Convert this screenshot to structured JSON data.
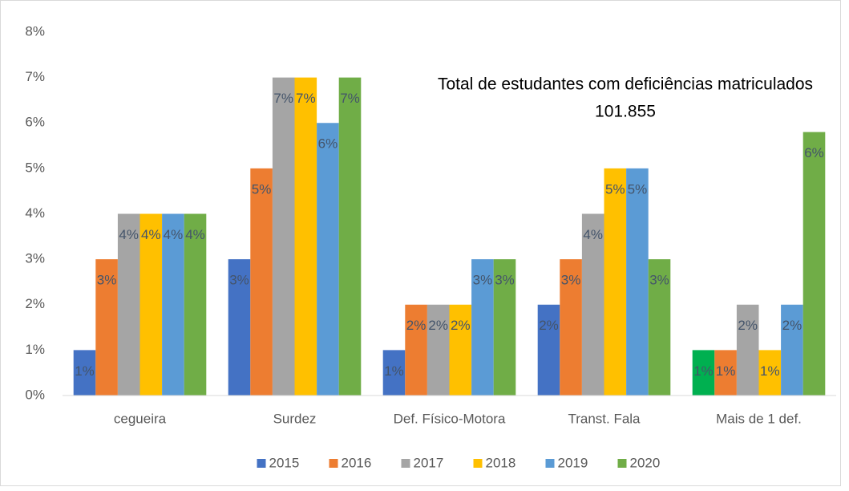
{
  "chart_data": {
    "type": "bar",
    "annotation": [
      "Total de estudantes com deficiências matriculados",
      "101.855"
    ],
    "categories": [
      "cegueira",
      "Surdez",
      "Def. Físico-Motora",
      "Transt. Fala",
      "Mais de 1 def."
    ],
    "series": [
      {
        "name": "2015",
        "color": "#4472c4",
        "colors": [
          "#4472c4",
          "#4472c4",
          "#4472c4",
          "#4472c4",
          "#00b050"
        ],
        "values": [
          1,
          3,
          1,
          2,
          1
        ],
        "value_labels": [
          "1%",
          "3%",
          "1%",
          "2%",
          "1%"
        ]
      },
      {
        "name": "2016",
        "color": "#ed7d31",
        "values": [
          3,
          5,
          2,
          3,
          1
        ],
        "value_labels": [
          "3%",
          "5%",
          "2%",
          "3%",
          "1%"
        ]
      },
      {
        "name": "2017",
        "color": "#a5a5a5",
        "values": [
          4,
          7,
          2,
          4,
          2
        ],
        "value_labels": [
          "4%",
          "7%",
          "2%",
          "4%",
          "2%"
        ]
      },
      {
        "name": "2018",
        "color": "#ffc000",
        "values": [
          4,
          7,
          2,
          5,
          1
        ],
        "value_labels": [
          "4%",
          "7%",
          "2%",
          "5%",
          "1%"
        ]
      },
      {
        "name": "2019",
        "color": "#5b9bd5",
        "values": [
          4,
          6,
          3,
          5,
          2
        ],
        "value_labels": [
          "4%",
          "6%",
          "3%",
          "5%",
          "2%"
        ]
      },
      {
        "name": "2020",
        "color": "#70ad47",
        "values": [
          4,
          7,
          3,
          3,
          5.8
        ],
        "value_labels": [
          "4%",
          "7%",
          "3%",
          "3%",
          "6%"
        ]
      }
    ],
    "ylim": [
      0,
      8
    ],
    "yticks": [
      {
        "value": 0,
        "label": "0%"
      },
      {
        "value": 1,
        "label": "1%"
      },
      {
        "value": 2,
        "label": "2%"
      },
      {
        "value": 3,
        "label": "3%"
      },
      {
        "value": 4,
        "label": "4%"
      },
      {
        "value": 5,
        "label": "5%"
      },
      {
        "value": 6,
        "label": "6%"
      },
      {
        "value": 7,
        "label": "7%"
      },
      {
        "value": 8,
        "label": "8%"
      }
    ],
    "grid": false,
    "legend": "bottom"
  }
}
